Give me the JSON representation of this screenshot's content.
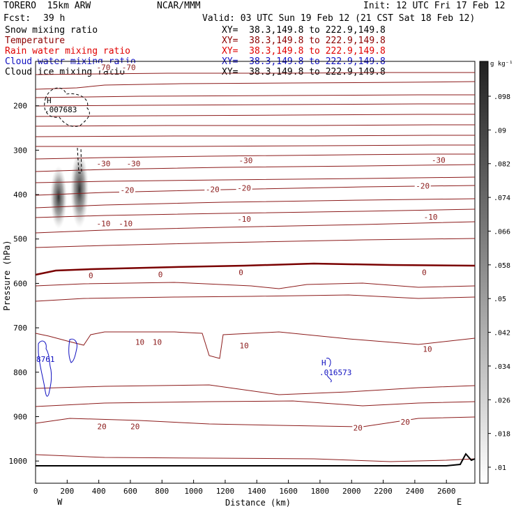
{
  "header": {
    "model": "TORERO  15km ARW",
    "center": "NCAR/MMM",
    "init": "Init: 12 UTC Fri 17 Feb 12",
    "fcst_label": "Fcst:",
    "fcst_value": "39 h",
    "valid": "Valid: 03 UTC Sun 19 Feb 12 (21 CST Sat 18 Feb 12)"
  },
  "fields": [
    {
      "name": "Snow mixing ratio",
      "xy": "XY=  38.3,149.8 to 222.9,149.8",
      "color": "#000000"
    },
    {
      "name": "Temperature",
      "xy": "XY=  38.3,149.8 to 222.9,149.8",
      "color": "#8b0000"
    },
    {
      "name": "Rain water mixing ratio",
      "xy": "XY=  38.3,149.8 to 222.9,149.8",
      "color": "#e00000"
    },
    {
      "name": "Cloud water mixing ratio",
      "xy": "XY=  38.3,149.8 to 222.9,149.8",
      "color": "#1010c0"
    },
    {
      "name": "Cloud ice mixing ratio",
      "xy": "XY=  38.3,149.8 to 222.9,149.8",
      "color": "#000000"
    }
  ],
  "colorbar": {
    "unit": "g kg⁻¹",
    "labels": [
      ".01",
      ".018",
      ".026",
      ".034",
      ".042",
      ".05",
      ".058",
      ".066",
      ".074",
      ".082",
      ".09",
      ".098"
    ]
  },
  "annotations": {
    "ice_max_label": "H",
    "ice_max_value": ".007683",
    "cloud_max_label": "H",
    "cloud_max_value": ".016573",
    "cloud_left_value": "8761",
    "west": "W",
    "east": "E"
  },
  "chart_data": {
    "type": "contour cross-section",
    "xlabel": "Distance (km)",
    "ylabel": "Pressure (hPa)",
    "xlim": [
      0,
      2780
    ],
    "ylim": [
      1050,
      100
    ],
    "x_ticks": [
      "0",
      "200",
      "400",
      "600",
      "800",
      "1000",
      "1200",
      "1400",
      "1600",
      "1800",
      "2000",
      "2200",
      "2400",
      "2600"
    ],
    "y_ticks": [
      "200",
      "300",
      "400",
      "500",
      "600",
      "700",
      "800",
      "900",
      "1000"
    ],
    "temperature_contour_labels": [
      {
        "value": "-70",
        "x": 430,
        "p": 113
      },
      {
        "value": "-70",
        "x": 590,
        "p": 113
      },
      {
        "value": "-30",
        "x": 430,
        "p": 330
      },
      {
        "value": "-30",
        "x": 620,
        "p": 330
      },
      {
        "value": "-30",
        "x": 1330,
        "p": 323
      },
      {
        "value": "-30",
        "x": 2550,
        "p": 322
      },
      {
        "value": "-20",
        "x": 580,
        "p": 390
      },
      {
        "value": "-20",
        "x": 1120,
        "p": 388
      },
      {
        "value": "-20",
        "x": 1320,
        "p": 385
      },
      {
        "value": "-20",
        "x": 2450,
        "p": 380
      },
      {
        "value": "-10",
        "x": 430,
        "p": 465
      },
      {
        "value": "-10",
        "x": 570,
        "p": 465
      },
      {
        "value": "-10",
        "x": 1320,
        "p": 455
      },
      {
        "value": "-10",
        "x": 2500,
        "p": 450
      },
      {
        "value": "0",
        "x": 350,
        "p": 582
      },
      {
        "value": "0",
        "x": 790,
        "p": 580
      },
      {
        "value": "0",
        "x": 1300,
        "p": 575
      },
      {
        "value": "0",
        "x": 2460,
        "p": 575
      },
      {
        "value": "10",
        "x": 660,
        "p": 732
      },
      {
        "value": "10",
        "x": 770,
        "p": 732
      },
      {
        "value": "10",
        "x": 1320,
        "p": 740
      },
      {
        "value": "10",
        "x": 2480,
        "p": 748
      },
      {
        "value": "20",
        "x": 420,
        "p": 922
      },
      {
        "value": "20",
        "x": 630,
        "p": 922
      },
      {
        "value": "20",
        "x": 2040,
        "p": 925
      },
      {
        "value": "20",
        "x": 2340,
        "p": 912
      }
    ],
    "surface_pressure_hPa": 1010
  }
}
